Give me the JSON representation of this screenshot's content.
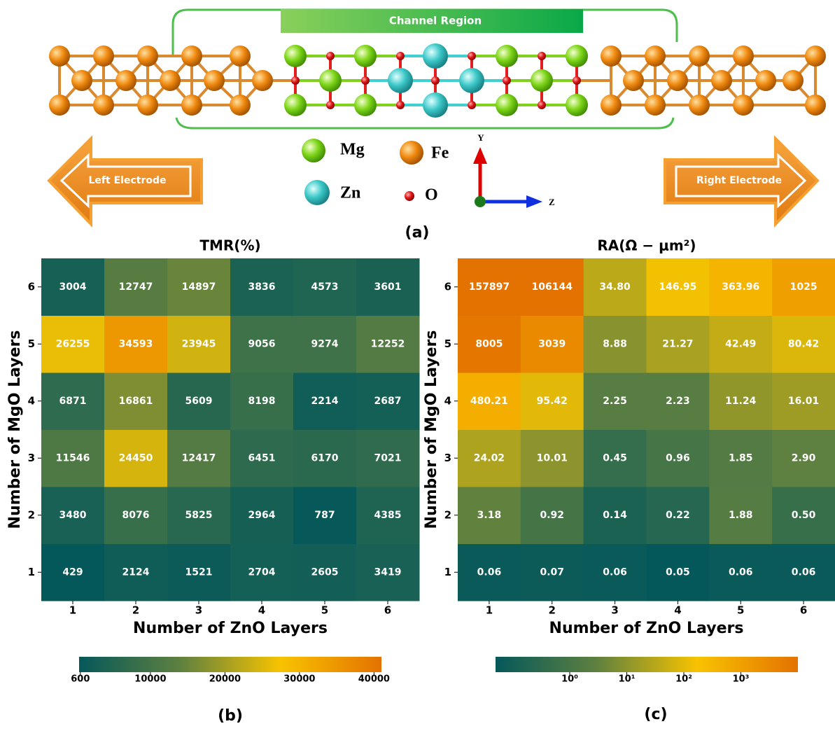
{
  "figure": {
    "panel_labels": [
      "(a)",
      "(b)",
      "(c)"
    ],
    "channel_label": "Channel Region",
    "left_electrode": "Left Electrode",
    "right_electrode": "Right Electrode",
    "legend": [
      "Mg",
      "Fe",
      "Zn",
      "O"
    ],
    "axes": [
      "Y",
      "Z"
    ]
  },
  "chart_data": [
    {
      "type": "heatmap",
      "title": "TMR(%)",
      "x_label": "Number of ZnO Layers",
      "y_label": "Number of MgO Layers",
      "x_categories": [
        "1",
        "2",
        "3",
        "4",
        "5",
        "6"
      ],
      "y_categories": [
        "1",
        "2",
        "3",
        "4",
        "5",
        "6"
      ],
      "values": [
        [
          429,
          2124,
          1521,
          2704,
          2605,
          3419
        ],
        [
          3480,
          8076,
          5825,
          2964,
          787,
          4385
        ],
        [
          11546,
          24450,
          12417,
          6451,
          6170,
          7021
        ],
        [
          6871,
          16861,
          5609,
          8198,
          2214,
          2687
        ],
        [
          26255,
          34593,
          23945,
          9056,
          9274,
          12252
        ],
        [
          3004,
          12747,
          14897,
          3836,
          4573,
          3601
        ]
      ],
      "color_scale": "linear",
      "clim": [
        429,
        41000
      ],
      "cticks": [
        600,
        10000,
        20000,
        30000,
        40000
      ],
      "colors": [
        "#05585a",
        "#5e8040",
        "#f8c300",
        "#e47200"
      ]
    },
    {
      "type": "heatmap",
      "title": "RA(Ω − μm²)",
      "x_label": "Number of ZnO Layers",
      "y_label": "Number of MgO Layers",
      "x_categories": [
        "1",
        "2",
        "3",
        "4",
        "5",
        "6"
      ],
      "y_categories": [
        "1",
        "2",
        "3",
        "4",
        "5",
        "6"
      ],
      "values": [
        [
          0.06,
          0.07,
          0.06,
          0.05,
          0.06,
          0.06
        ],
        [
          3.18,
          0.92,
          0.14,
          0.22,
          1.88,
          0.5
        ],
        [
          24.02,
          10.01,
          0.45,
          0.96,
          1.85,
          2.9
        ],
        [
          480.21,
          95.42,
          2.25,
          2.23,
          11.24,
          16.01
        ],
        [
          8005,
          3039,
          8.88,
          21.27,
          42.49,
          80.42
        ],
        [
          157897,
          106144,
          34.8,
          146.95,
          363.96,
          1025
        ]
      ],
      "value_labels": [
        [
          "0.06",
          "0.07",
          "0.06",
          "0.05",
          "0.06",
          "0.06"
        ],
        [
          "3.18",
          "0.92",
          "0.14",
          "0.22",
          "1.88",
          "0.50"
        ],
        [
          "24.02",
          "10.01",
          "0.45",
          "0.96",
          "1.85",
          "2.90"
        ],
        [
          "480.21",
          "95.42",
          "2.25",
          "2.23",
          "11.24",
          "16.01"
        ],
        [
          "8005",
          "3039",
          "8.88",
          "21.27",
          "42.49",
          "80.42"
        ],
        [
          "157897",
          "106144",
          "34.80",
          "146.95",
          "363.96",
          "1025"
        ]
      ],
      "color_scale": "log",
      "clim": [
        0.05,
        10000
      ],
      "cticks": [
        {
          "value": 1,
          "label": "10⁰"
        },
        {
          "value": 10,
          "label": "10¹"
        },
        {
          "value": 100,
          "label": "10²"
        },
        {
          "value": 1000,
          "label": "10³"
        }
      ],
      "colors": [
        "#05585a",
        "#5e8040",
        "#f8c300",
        "#e47200"
      ]
    }
  ]
}
